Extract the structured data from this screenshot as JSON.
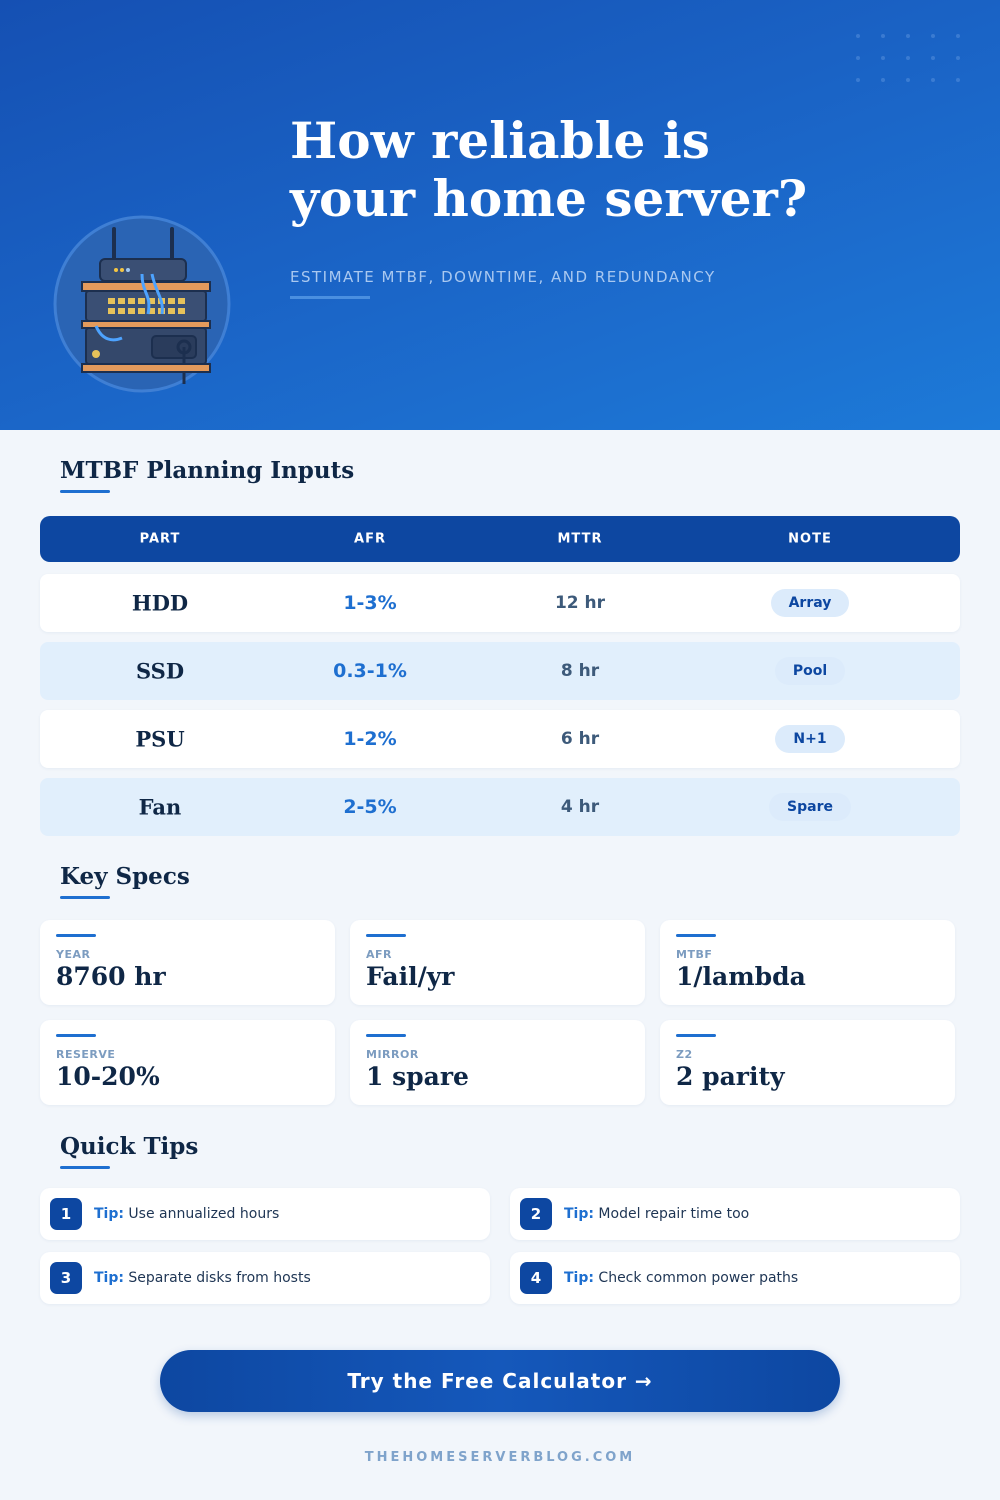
{
  "header": {
    "title_lines": [
      "How reliable is",
      "your home server?"
    ],
    "subtitle": "ESTIMATE MTBF, DOWNTIME, AND REDUNDANCY"
  },
  "table": {
    "heading": "MTBF Planning Inputs",
    "columns": [
      "PART",
      "AFR",
      "MTTR",
      "NOTE"
    ],
    "rows": [
      [
        "HDD",
        "1-3%",
        "12 hr",
        "Array"
      ],
      [
        "SSD",
        "0.3-1%",
        "8 hr",
        "Pool"
      ],
      [
        "PSU",
        "1-2%",
        "6 hr",
        "N+1"
      ],
      [
        "Fan",
        "2-5%",
        "4 hr",
        "Spare"
      ]
    ]
  },
  "specs": {
    "heading": "Key Specs",
    "cards": [
      {
        "label": "YEAR",
        "value": "8760 hr"
      },
      {
        "label": "AFR",
        "value": "Fail/yr"
      },
      {
        "label": "MTBF",
        "value": "1/lambda"
      },
      {
        "label": "RESERVE",
        "value": "10-20%"
      },
      {
        "label": "MIRROR",
        "value": "1 spare"
      },
      {
        "label": "Z2",
        "value": "2 parity"
      }
    ]
  },
  "tips": {
    "heading": "Quick Tips",
    "items": [
      {
        "number": "1",
        "prefix": "Tip:",
        "text": "Use annualized hours"
      },
      {
        "number": "2",
        "prefix": "Tip:",
        "text": "Model repair time too"
      },
      {
        "number": "3",
        "prefix": "Tip:",
        "text": "Separate disks from hosts"
      },
      {
        "number": "4",
        "prefix": "Tip:",
        "text": "Check common power paths"
      }
    ]
  },
  "cta": {
    "button": "Try the Free Calculator →"
  },
  "footer": {
    "site": "THEHOMESERVERBLOG.COM"
  }
}
